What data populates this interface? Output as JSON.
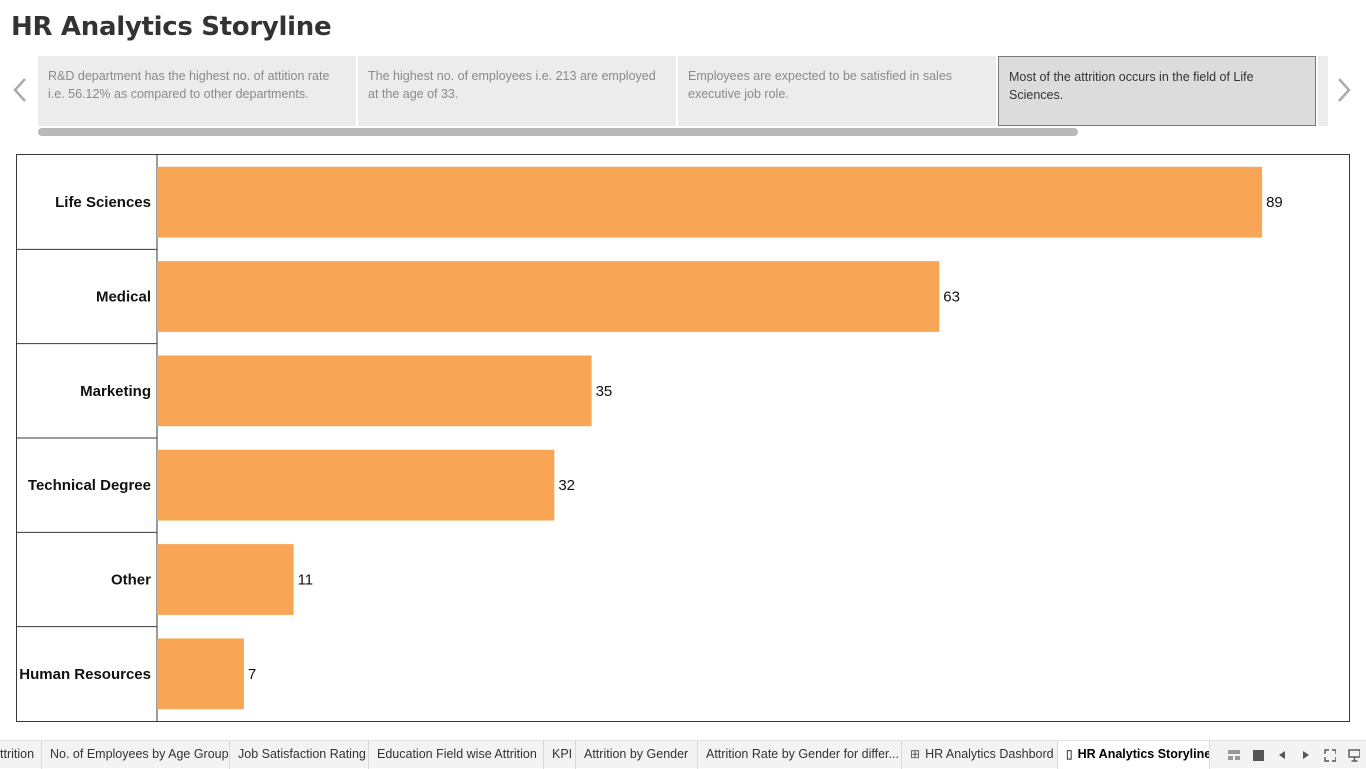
{
  "header": {
    "title": "HR Analytics Storyline"
  },
  "story": {
    "points": [
      {
        "text": "R&D department has the highest no. of attition rate i.e. 56.12% as compared to other departments."
      },
      {
        "text": "The highest no. of employees i.e. 213 are employed at the age of 33."
      },
      {
        "text": "Employees are expected to be satisfied in sales executive job role."
      },
      {
        "text": "Most of the attrition occurs in the field of Life Sciences."
      }
    ],
    "active_index": 3,
    "prev_icon": "chevron-left-icon",
    "next_icon": "chevron-right-icon"
  },
  "chart_data": {
    "type": "bar",
    "orientation": "horizontal",
    "categories": [
      "Life Sciences",
      "Medical",
      "Marketing",
      "Technical Degree",
      "Other",
      "Human Resources"
    ],
    "values": [
      89,
      63,
      35,
      32,
      11,
      7
    ],
    "title": "",
    "xlabel": "",
    "ylabel": "",
    "xlim": [
      0,
      96
    ],
    "bar_color": "#F8A655",
    "data_labels": true,
    "grid": false
  },
  "tabs": [
    {
      "label": "ttrition",
      "icon": ""
    },
    {
      "label": "No. of Employees by Age Group",
      "icon": ""
    },
    {
      "label": "Job Satisfaction Rating",
      "icon": ""
    },
    {
      "label": "Education Field wise Attrition",
      "icon": ""
    },
    {
      "label": "KPI",
      "icon": ""
    },
    {
      "label": "Attrition by Gender",
      "icon": ""
    },
    {
      "label": "Attrition Rate by Gender for differ...",
      "icon": ""
    },
    {
      "label": "HR Analytics Dashbord",
      "icon": "dashboard-icon"
    },
    {
      "label": "HR Analytics Storyline",
      "icon": "story-icon"
    }
  ],
  "active_tab": 8,
  "colors": {
    "bar": "#F8A655",
    "frame": "#3a3a3a",
    "story_bg": "#ececec",
    "story_active_bg": "#dcdcdc"
  }
}
